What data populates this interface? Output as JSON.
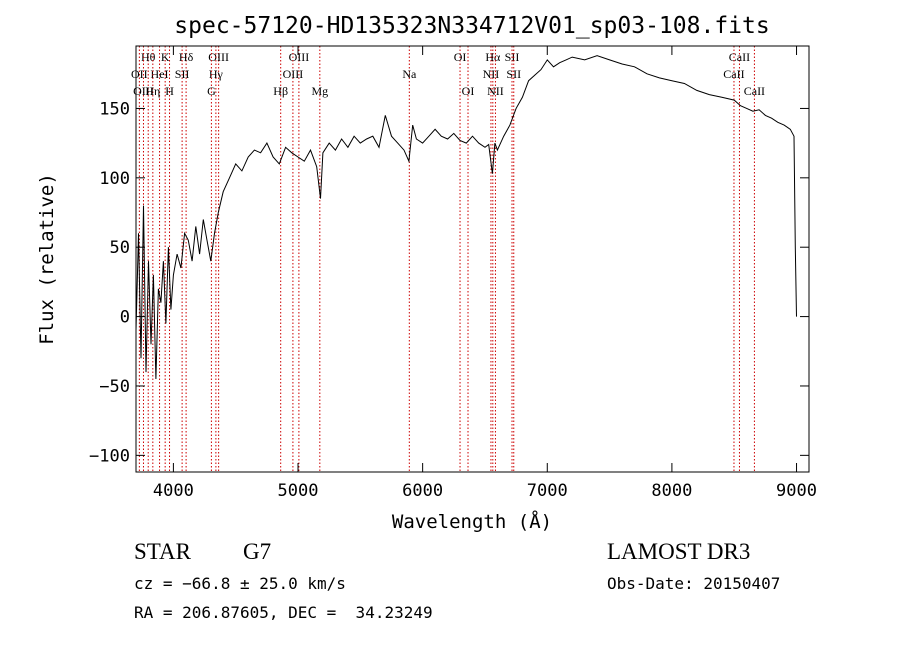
{
  "chart_data": {
    "type": "line",
    "title": "spec-57120-HD135323N334712V01_sp03-108.fits",
    "xlabel": "Wavelength (Å)",
    "ylabel": "Flux (relative)",
    "xlim": [
      3700,
      9100
    ],
    "ylim": [
      -112,
      195
    ],
    "x_ticks": [
      4000,
      5000,
      6000,
      7000,
      8000,
      9000
    ],
    "y_ticks": [
      -100,
      -50,
      0,
      50,
      100,
      150
    ],
    "x_tick_labels": [
      "4000",
      "5000",
      "6000",
      "7000",
      "8000",
      "9000"
    ],
    "y_tick_labels": [
      "−100",
      "−50",
      "0",
      "50",
      "100",
      "150"
    ],
    "line_color": "#cc0000",
    "series": [
      {
        "x": [
          3700,
          3720,
          3740,
          3760,
          3780,
          3800,
          3820,
          3840,
          3860,
          3880,
          3900,
          3920,
          3940,
          3960,
          3980,
          4000,
          4030,
          4060,
          4090,
          4120,
          4150,
          4180,
          4210,
          4240,
          4270,
          4300,
          4330,
          4360,
          4400,
          4450,
          4500,
          4550,
          4600,
          4650,
          4700,
          4750,
          4800,
          4850,
          4900,
          4950,
          5000,
          5050,
          5100,
          5150,
          5180,
          5200,
          5250,
          5300,
          5350,
          5400,
          5450,
          5500,
          5550,
          5600,
          5650,
          5700,
          5750,
          5800,
          5850,
          5890,
          5920,
          5950,
          6000,
          6050,
          6100,
          6150,
          6200,
          6250,
          6300,
          6350,
          6400,
          6450,
          6500,
          6530,
          6560,
          6580,
          6600,
          6650,
          6700,
          6750,
          6800,
          6850,
          6900,
          6950,
          7000,
          7050,
          7100,
          7150,
          7200,
          7300,
          7400,
          7500,
          7600,
          7700,
          7800,
          7900,
          8000,
          8100,
          8200,
          8300,
          8400,
          8500,
          8550,
          8600,
          8650,
          8700,
          8750,
          8800,
          8850,
          8900,
          8950,
          8980,
          8990,
          9000
        ],
        "y": [
          -10,
          60,
          -30,
          80,
          -40,
          40,
          -20,
          30,
          -45,
          20,
          10,
          40,
          -5,
          50,
          5,
          30,
          45,
          35,
          60,
          55,
          40,
          65,
          45,
          70,
          55,
          40,
          60,
          75,
          90,
          100,
          110,
          105,
          115,
          120,
          118,
          125,
          115,
          110,
          122,
          118,
          115,
          112,
          120,
          108,
          85,
          118,
          125,
          120,
          128,
          122,
          130,
          125,
          128,
          130,
          122,
          145,
          130,
          125,
          120,
          112,
          138,
          128,
          125,
          130,
          135,
          130,
          128,
          132,
          127,
          125,
          130,
          125,
          122,
          124,
          103,
          125,
          120,
          130,
          138,
          150,
          158,
          170,
          174,
          178,
          185,
          180,
          183,
          185,
          187,
          185,
          188,
          185,
          182,
          180,
          175,
          172,
          170,
          168,
          163,
          160,
          158,
          156,
          152,
          150,
          148,
          149,
          145,
          143,
          140,
          138,
          135,
          130,
          50,
          0
        ]
      }
    ],
    "lines": [
      {
        "label": "Hθ",
        "x": 3798,
        "row": 1
      },
      {
        "label": "OII",
        "x": 3727,
        "row": 2
      },
      {
        "label": "OIII",
        "x": 3760,
        "row": 3
      },
      {
        "label": "K",
        "x": 3934,
        "row": 1
      },
      {
        "label": "HeI",
        "x": 3889,
        "row": 2
      },
      {
        "label": "Hη",
        "x": 3835,
        "row": 3
      },
      {
        "label": "Hδ",
        "x": 4102,
        "row": 1
      },
      {
        "label": "SII",
        "x": 4070,
        "row": 2
      },
      {
        "label": "H",
        "x": 3969,
        "row": 3
      },
      {
        "label": "OIII",
        "x": 4363,
        "row": 1
      },
      {
        "label": "Hγ",
        "x": 4341,
        "row": 2
      },
      {
        "label": "G",
        "x": 4305,
        "row": 3
      },
      {
        "label": "OIII",
        "x": 5007,
        "row": 1
      },
      {
        "label": "OIII",
        "x": 4959,
        "row": 2
      },
      {
        "label": "Hβ",
        "x": 4861,
        "row": 3
      },
      {
        "label": "Mg",
        "x": 5175,
        "row": 3
      },
      {
        "label": "Na",
        "x": 5893,
        "row": 2
      },
      {
        "label": "OI",
        "x": 6300,
        "row": 1
      },
      {
        "label": "OI",
        "x": 6364,
        "row": 3
      },
      {
        "label": "Hα",
        "x": 6563,
        "row": 1
      },
      {
        "label": "NII",
        "x": 6548,
        "row": 2
      },
      {
        "label": "NII",
        "x": 6584,
        "row": 3
      },
      {
        "label": "SII",
        "x": 6717,
        "row": 1
      },
      {
        "label": "SII",
        "x": 6731,
        "row": 2
      },
      {
        "label": "CaII",
        "x": 8542,
        "row": 1
      },
      {
        "label": "CaII",
        "x": 8498,
        "row": 2
      },
      {
        "label": "CaII",
        "x": 8662,
        "row": 3
      }
    ]
  },
  "footer": {
    "object_type": "STAR",
    "subclass": "G7",
    "survey": "LAMOST DR3",
    "redshift": "cz = −66.8 ± 25.0 km/s",
    "obs_date": "Obs-Date: 20150407",
    "coords": "RA = 206.87605, DEC =  34.23249"
  }
}
